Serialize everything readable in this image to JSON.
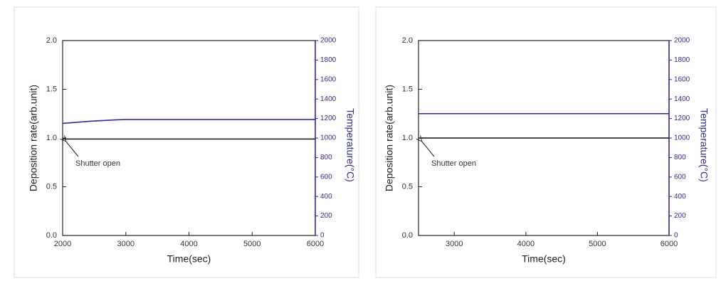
{
  "chart_data": [
    {
      "type": "line",
      "xlabel": "Time(sec)",
      "ylabel": "Deposition rate(arb.unit)",
      "y2label": "Temperature(°C)",
      "annotation": "Shutter open",
      "xlim": [
        2000,
        6000
      ],
      "xticks": [
        2000,
        3000,
        4000,
        5000,
        6000
      ],
      "ylim": [
        0,
        2
      ],
      "yticks": [
        {
          "value": 0,
          "label": "0.0"
        },
        0.5,
        {
          "value": 1,
          "label": "1.0"
        },
        1.5,
        {
          "value": 2,
          "label": "2.0"
        }
      ],
      "y2lim": [
        0,
        2000
      ],
      "y2ticks": [
        0,
        200,
        400,
        600,
        800,
        1000,
        1200,
        1400,
        1600,
        1800,
        2000
      ],
      "x": [
        2000,
        2200,
        2500,
        2800,
        3000,
        4000,
        5000,
        6000
      ],
      "series": [
        {
          "color": "#111111",
          "values": [
            0.99,
            0.99,
            0.99,
            0.99,
            0.99,
            0.99,
            0.99,
            0.99
          ]
        },
        {
          "color": "#2b2ba8",
          "axis": "y2",
          "values": [
            1150,
            1160,
            1175,
            1185,
            1190,
            1190,
            1190,
            1190
          ]
        }
      ]
    },
    {
      "type": "line",
      "xlabel": "Time(sec)",
      "ylabel": "Deposition rate(arb.unit)",
      "y2label": "Temperature(°C)",
      "annotation": "Shutter open",
      "xlim": [
        2500,
        6000
      ],
      "xticks": [
        3000,
        4000,
        5000,
        6000
      ],
      "ylim": [
        0,
        2
      ],
      "yticks": [
        {
          "value": 0,
          "label": "0.0"
        },
        0.5,
        {
          "value": 1,
          "label": "1.0"
        },
        1.5,
        {
          "value": 2,
          "label": "2.0"
        }
      ],
      "y2lim": [
        0,
        2000
      ],
      "y2ticks": [
        0,
        200,
        400,
        600,
        800,
        1000,
        1200,
        1400,
        1600,
        1800,
        2000
      ],
      "x": [
        2500,
        3000,
        4000,
        5000,
        6000
      ],
      "series": [
        {
          "color": "#111111",
          "values": [
            1,
            1,
            1,
            1,
            1
          ]
        },
        {
          "color": "#2b2ba8",
          "axis": "y2",
          "values": [
            1250,
            1250,
            1250,
            1250,
            1250
          ]
        }
      ]
    }
  ]
}
